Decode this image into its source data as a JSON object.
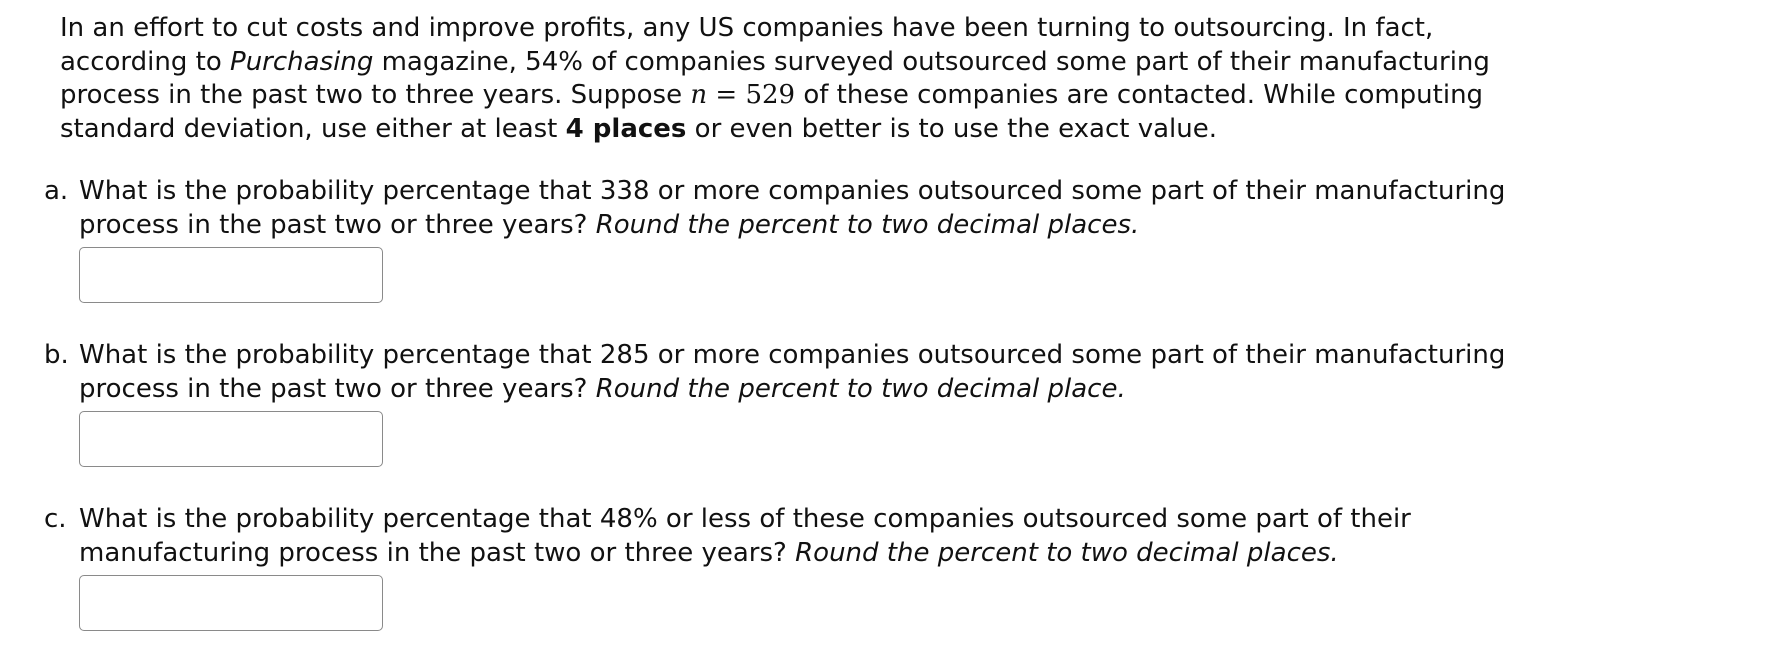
{
  "intro": {
    "part1": "In an effort to cut costs and improve profits, any US companies have been turning to outsourcing. In fact, according to ",
    "magazine": "Purchasing",
    "part2": " magazine, 54% of companies surveyed outsourced some part of their manufacturing process in the past two to three years. Suppose ",
    "var_n": "n",
    "equals": " = ",
    "n_value": "529",
    "part3": " of these companies are contacted. While computing standard deviation, use either at least ",
    "bold": "4 places",
    "part4": " or even better is to use the exact value."
  },
  "questions": [
    {
      "marker": "a.",
      "text": "What is the probability percentage that 338 or more companies outsourced some part of their manufacturing process in the past two or three years? ",
      "instruction": "Round the percent to two decimal places.",
      "value": ""
    },
    {
      "marker": "b.",
      "text": "What is the probability percentage that 285 or more companies outsourced some part of their manufacturing process in the past two or three years? ",
      "instruction": "Round the percent to two decimal place.",
      "value": ""
    },
    {
      "marker": "c.",
      "text": "What is the probability percentage that 48% or less of these companies outsourced some part of their manufacturing process in the past two or three years? ",
      "instruction": "Round the percent to two decimal places.",
      "value": ""
    }
  ]
}
